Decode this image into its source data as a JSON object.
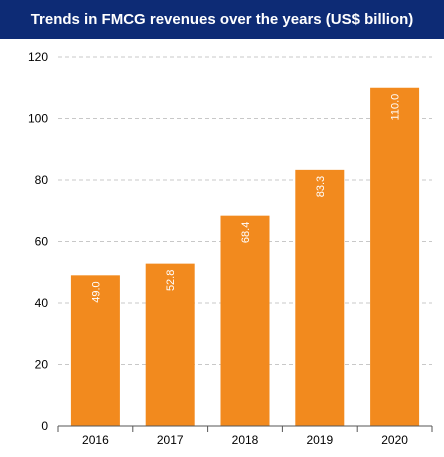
{
  "chart_data": {
    "type": "bar",
    "title": "Trends in FMCG revenues over the years (US$ billion)",
    "categories": [
      "2016",
      "2017",
      "2018",
      "2019",
      "2020"
    ],
    "values": [
      49.0,
      52.8,
      68.4,
      83.3,
      110.0
    ],
    "value_labels": [
      "49.0",
      "52.8",
      "68.4",
      "83.3",
      "110.0"
    ],
    "ylim": [
      0,
      120
    ],
    "yticks": [
      0,
      20,
      40,
      60,
      80,
      100,
      120
    ],
    "grid": true,
    "colors": {
      "bar": "#f28a1e",
      "title_bg": "#0d2b75",
      "grid": "#c8c8c8"
    }
  }
}
